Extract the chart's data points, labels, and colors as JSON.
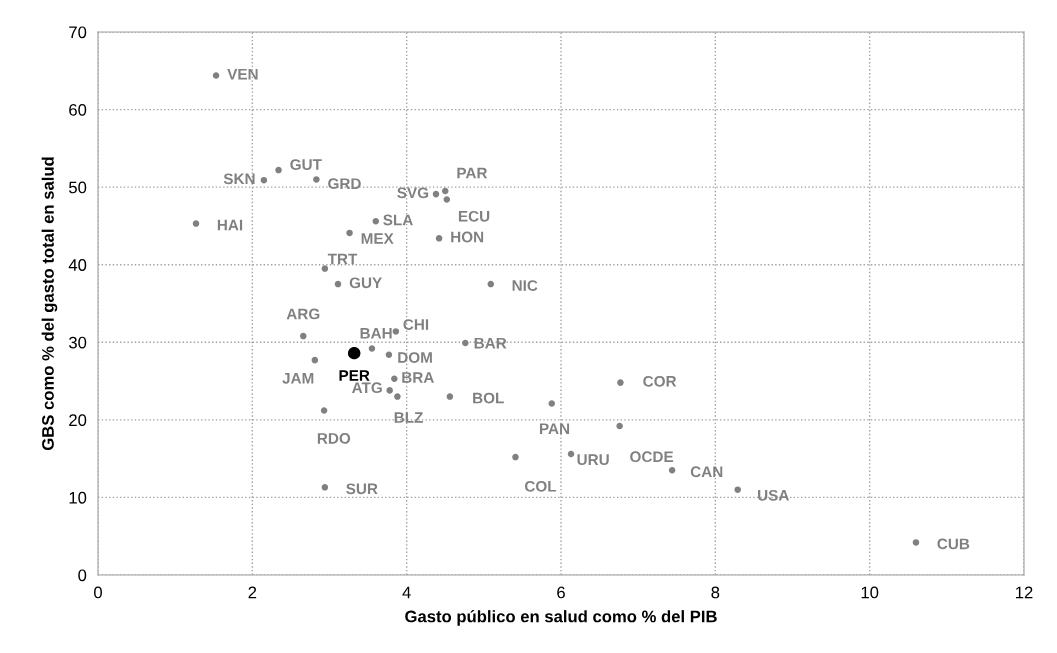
{
  "chart_data": {
    "type": "scatter",
    "xlabel": "Gasto público en salud como % del PIB",
    "ylabel": "GBS como % del gasto total en salud",
    "xlim": [
      0,
      12
    ],
    "xticks": [
      0,
      2,
      4,
      6,
      8,
      10,
      12
    ],
    "ylim": [
      0,
      70
    ],
    "yticks": [
      0,
      10,
      20,
      30,
      40,
      50,
      60,
      70
    ],
    "grid": true,
    "marker": "circle",
    "legend": false,
    "series": [
      {
        "color": "#808080",
        "x": [
          1.53,
          2.15,
          2.34,
          2.83,
          1.27,
          3.6,
          3.26,
          4.38,
          4.5,
          4.52,
          4.42,
          2.94,
          3.11,
          5.09,
          2.66,
          3.86,
          3.55,
          2.81,
          3.77,
          4.76,
          3.84,
          3.78,
          3.88,
          4.56,
          5.88,
          2.93,
          5.41,
          2.94,
          6.77,
          6.76,
          6.13,
          7.44,
          8.29,
          10.6
        ],
        "values": [
          64.4,
          50.9,
          52.2,
          51.0,
          45.3,
          45.6,
          44.1,
          49.1,
          49.5,
          48.4,
          43.4,
          39.5,
          37.5,
          37.5,
          30.8,
          31.4,
          29.2,
          27.7,
          28.4,
          29.9,
          25.3,
          23.8,
          23.0,
          23.0,
          22.1,
          21.2,
          15.2,
          11.3,
          24.8,
          19.2,
          15.6,
          13.5,
          11.0,
          4.2
        ]
      },
      {
        "color": "#000000",
        "x": [
          3.32
        ],
        "values": [
          28.6
        ]
      }
    ],
    "annotations": [
      {
        "text": "VEN",
        "x": 1.53,
        "y": 64.4
      },
      {
        "text": "SKN",
        "x": 2.15,
        "y": 50.9
      },
      {
        "text": "GUT",
        "x": 2.34,
        "y": 52.2
      },
      {
        "text": "GRD",
        "x": 2.83,
        "y": 51.0
      },
      {
        "text": "HAI",
        "x": 1.27,
        "y": 45.3
      },
      {
        "text": "SLA",
        "x": 3.6,
        "y": 45.6
      },
      {
        "text": "MEX",
        "x": 3.26,
        "y": 44.1
      },
      {
        "text": "SVG",
        "x": 4.38,
        "y": 49.1
      },
      {
        "text": "PAR",
        "x": 4.5,
        "y": 49.5
      },
      {
        "text": "ECU",
        "x": 4.52,
        "y": 48.4
      },
      {
        "text": "HON",
        "x": 4.42,
        "y": 43.4
      },
      {
        "text": "TRT",
        "x": 2.94,
        "y": 39.5
      },
      {
        "text": "GUY",
        "x": 3.11,
        "y": 37.5
      },
      {
        "text": "NIC",
        "x": 5.09,
        "y": 37.5
      },
      {
        "text": "ARG",
        "x": 2.66,
        "y": 30.8
      },
      {
        "text": "CHI",
        "x": 3.86,
        "y": 31.4
      },
      {
        "text": "BAH",
        "x": 3.55,
        "y": 29.2
      },
      {
        "text": "JAM",
        "x": 2.81,
        "y": 27.7
      },
      {
        "text": "DOM",
        "x": 3.77,
        "y": 28.4
      },
      {
        "text": "BAR",
        "x": 4.76,
        "y": 29.9
      },
      {
        "text": "BRA",
        "x": 3.84,
        "y": 25.3
      },
      {
        "text": "ATG",
        "x": 3.78,
        "y": 23.8
      },
      {
        "text": "BLZ",
        "x": 3.88,
        "y": 23.0
      },
      {
        "text": "BOL",
        "x": 4.56,
        "y": 23.0
      },
      {
        "text": "PAN",
        "x": 5.88,
        "y": 22.1
      },
      {
        "text": "RDO",
        "x": 2.93,
        "y": 21.2
      },
      {
        "text": "COL",
        "x": 5.41,
        "y": 15.2
      },
      {
        "text": "SUR",
        "x": 2.94,
        "y": 11.3
      },
      {
        "text": "COR",
        "x": 6.77,
        "y": 24.8
      },
      {
        "text": "OCDE",
        "x": 6.76,
        "y": 19.2
      },
      {
        "text": "URU",
        "x": 6.13,
        "y": 15.6
      },
      {
        "text": "CAN",
        "x": 7.44,
        "y": 13.5
      },
      {
        "text": "USA",
        "x": 8.29,
        "y": 11.0
      },
      {
        "text": "CUB",
        "x": 10.6,
        "y": 4.2
      },
      {
        "text": "PER",
        "x": 3.32,
        "y": 28.6
      }
    ]
  }
}
